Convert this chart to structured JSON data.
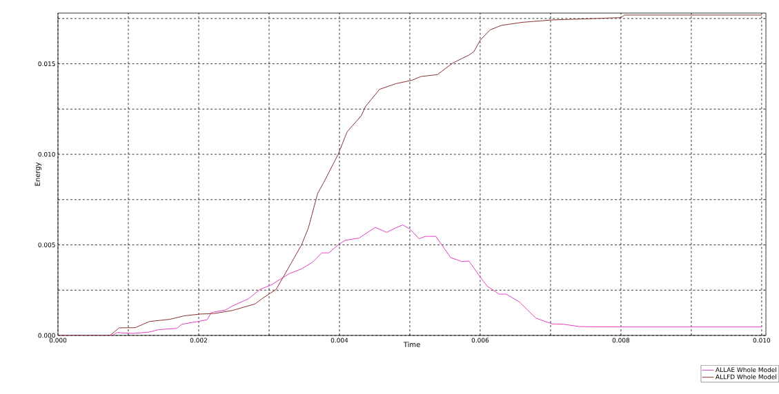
{
  "chart_data": {
    "type": "line",
    "xlabel": "Time",
    "ylabel": "Energy",
    "xlim": [
      0,
      0.01006
    ],
    "ylim": [
      0,
      0.0178
    ],
    "xticks": [
      {
        "value": 0,
        "label": "0.000"
      },
      {
        "value": 0.001,
        "label": null
      },
      {
        "value": 0.002,
        "label": "0.002"
      },
      {
        "value": 0.003,
        "label": null
      },
      {
        "value": 0.004,
        "label": "0.004"
      },
      {
        "value": 0.005,
        "label": null
      },
      {
        "value": 0.006,
        "label": "0.006"
      },
      {
        "value": 0.007,
        "label": null
      },
      {
        "value": 0.008,
        "label": "0.008"
      },
      {
        "value": 0.009,
        "label": null
      },
      {
        "value": 0.01,
        "label": "0.010"
      }
    ],
    "yticks": [
      {
        "value": 0,
        "label": "0.000"
      },
      {
        "value": 0.0025,
        "label": null
      },
      {
        "value": 0.005,
        "label": "0.005"
      },
      {
        "value": 0.0075,
        "label": null
      },
      {
        "value": 0.01,
        "label": "0.010"
      },
      {
        "value": 0.0125,
        "label": null
      },
      {
        "value": 0.015,
        "label": "0.015"
      },
      {
        "value": 0.0175,
        "label": null
      }
    ],
    "grid": true,
    "legend": "bottom right",
    "line_style": "solid",
    "marker": "none",
    "series": [
      {
        "name": "ALLAE Whole Model",
        "color": "#e040c0",
        "x": [
          0,
          0.00077,
          0.00084,
          0.00107,
          0.0013,
          0.00143,
          0.00169,
          0.00176,
          0.00199,
          0.00212,
          0.00218,
          0.00238,
          0.00248,
          0.00271,
          0.00287,
          0.00303,
          0.00329,
          0.00346,
          0.00362,
          0.00375,
          0.00385,
          0.00398,
          0.00408,
          0.00428,
          0.00451,
          0.00467,
          0.0048,
          0.0049,
          0.005,
          0.00513,
          0.00522,
          0.00537,
          0.00558,
          0.00574,
          0.00584,
          0.006,
          0.0061,
          0.00627,
          0.00637,
          0.00656,
          0.00679,
          0.00702,
          0.00718,
          0.00741,
          0.00757,
          0.008,
          0.009,
          0.01
        ],
        "values": [
          0,
          0,
          0.00016,
          0.00011,
          0.00019,
          0.00032,
          0.00039,
          0.00062,
          0.00077,
          0.00087,
          0.00127,
          0.0014,
          0.00163,
          0.00203,
          0.00254,
          0.00279,
          0.00342,
          0.00367,
          0.00405,
          0.00456,
          0.00456,
          0.005,
          0.00525,
          0.00538,
          0.00597,
          0.00569,
          0.00594,
          0.0061,
          0.00588,
          0.00534,
          0.00547,
          0.00547,
          0.0043,
          0.00408,
          0.00411,
          0.00323,
          0.00272,
          0.00228,
          0.00228,
          0.00184,
          0.00096,
          0.00064,
          0.00062,
          0.00049,
          0.00048,
          0.00047,
          0.00047,
          0.00047
        ]
      },
      {
        "name": "ALLFD Whole Model",
        "color": "#8c2f2f",
        "x": [
          0,
          0.00074,
          0.00087,
          0.0011,
          0.0013,
          0.00159,
          0.00179,
          0.00202,
          0.00222,
          0.00248,
          0.0028,
          0.0029,
          0.0031,
          0.00323,
          0.00346,
          0.00356,
          0.00369,
          0.00378,
          0.00398,
          0.00411,
          0.00431,
          0.00437,
          0.00457,
          0.0048,
          0.00503,
          0.00516,
          0.00539,
          0.00561,
          0.00584,
          0.00591,
          0.006,
          0.00614,
          0.0063,
          0.0066,
          0.00702,
          0.00741,
          0.008,
          0.00805,
          0.009,
          0.01
        ],
        "values": [
          0,
          0,
          0.00042,
          0.00043,
          0.00077,
          0.00089,
          0.00108,
          0.00118,
          0.00121,
          0.00138,
          0.00174,
          0.00203,
          0.00254,
          0.00342,
          0.00499,
          0.00595,
          0.00784,
          0.00847,
          0.00999,
          0.01125,
          0.01213,
          0.01264,
          0.01359,
          0.0139,
          0.01409,
          0.0143,
          0.0144,
          0.01504,
          0.01548,
          0.01567,
          0.0163,
          0.01687,
          0.01712,
          0.01729,
          0.01742,
          0.01747,
          0.01755,
          0.01769,
          0.01769,
          0.01769
        ]
      }
    ]
  }
}
